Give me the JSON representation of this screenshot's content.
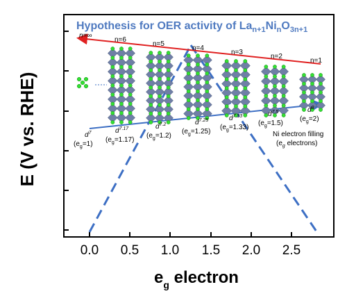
{
  "axes": {
    "ylabel": "E (V vs. RHE)",
    "xlabel_main": "e",
    "xlabel_sub": "g",
    "xlabel_rest": " electron",
    "xticks": [
      "0.0",
      "0.5",
      "1.0",
      "1.5",
      "2.0",
      "2.5"
    ]
  },
  "title": {
    "prefix": "Hypothesis for OER activity of La",
    "sub1": "n+1",
    "mid1": "Ni",
    "sub2": "n",
    "mid2": "O",
    "sub3": "3n+1"
  },
  "structures": [
    {
      "n": "n=∞",
      "d": "d",
      "d_sup": "7",
      "eg": "(e",
      "eg_sub": "g",
      "eg_val": "=1)"
    },
    {
      "n": "n=6",
      "d": "d",
      "d_sup": "7.17",
      "eg": "(e",
      "eg_sub": "g",
      "eg_val": "=1.17)"
    },
    {
      "n": "n=5",
      "d": "d",
      "d_sup": "7.2",
      "eg": "(e",
      "eg_sub": "g",
      "eg_val": "=1.2)"
    },
    {
      "n": "n=4",
      "d": "d",
      "d_sup": "7.25",
      "eg": "(e",
      "eg_sub": "g",
      "eg_val": "=1.25)"
    },
    {
      "n": "n=3",
      "d": "d",
      "d_sup": "7.33",
      "eg": "(e",
      "eg_sub": "g",
      "eg_val": "=1.33)"
    },
    {
      "n": "n=2",
      "d": "d",
      "d_sup": "7.5",
      "eg": "(e",
      "eg_sub": "g",
      "eg_val": "=1.5)"
    },
    {
      "n": "n=1",
      "d": "d",
      "d_sup": "8",
      "eg": "(e",
      "eg_sub": "g",
      "eg_val": "=2)"
    }
  ],
  "note": {
    "line1": "Ni electron filling",
    "line2_pre": "(e",
    "line2_sub": "g",
    "line2_post": " electrons)"
  },
  "colors": {
    "red_arrow": "#e02020",
    "blue_arrow": "#3d6fc4",
    "dash_line": "#3d6fc4",
    "title": "#4f7ac0",
    "oxygen": "#6f7fa6",
    "la_atom": "#33e033"
  }
}
